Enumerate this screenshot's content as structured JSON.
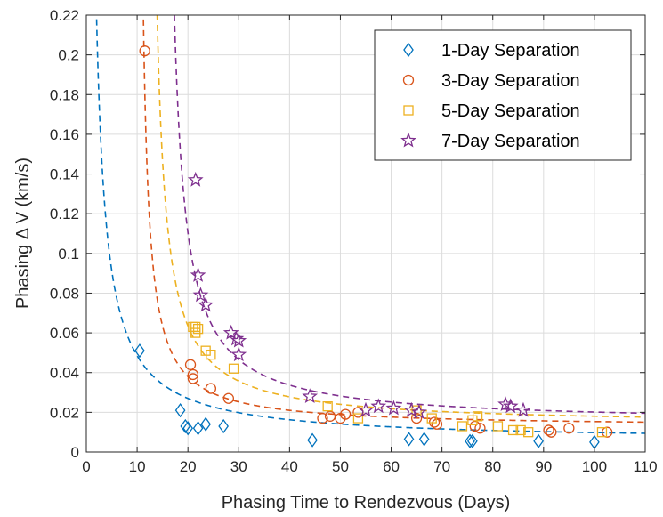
{
  "chart_data": {
    "type": "scatter",
    "title": "",
    "xlabel": "Phasing Time to Rendezvous (Days)",
    "ylabel": "Phasing Δ V (km/s)",
    "xlim": [
      0,
      110
    ],
    "ylim": [
      0,
      0.22
    ],
    "xticks": [
      "0",
      "10",
      "20",
      "30",
      "40",
      "50",
      "60",
      "70",
      "80",
      "90",
      "100",
      "110"
    ],
    "yticks": [
      "0",
      "0.02",
      "0.04",
      "0.06",
      "0.08",
      "0.1",
      "0.12",
      "0.14",
      "0.16",
      "0.18",
      "0.2",
      "0.22"
    ],
    "grid": true,
    "legend_position": "top-right",
    "series": [
      {
        "name": "1-Day Separation",
        "marker": "diamond",
        "color": "#0072BD",
        "fit": {
          "a": 0.43,
          "b": 0.0055,
          "x0": 0
        },
        "x": [
          10.5,
          18.5,
          19.5,
          20,
          22,
          23.5,
          27,
          44.5,
          63.5,
          66.5,
          75.5,
          76,
          89,
          100
        ],
        "y": [
          0.051,
          0.021,
          0.013,
          0.012,
          0.012,
          0.014,
          0.013,
          0.006,
          0.0065,
          0.0065,
          0.0055,
          0.0055,
          0.0055,
          0.005
        ]
      },
      {
        "name": "3-Day Separation",
        "marker": "circle",
        "color": "#D95319",
        "fit": {
          "a": 0.255,
          "b": 0.0125,
          "x0": 10
        },
        "x": [
          11.5,
          20.5,
          21,
          21,
          24.5,
          28,
          46.5,
          48,
          50,
          51,
          53.5,
          65,
          68.5,
          69,
          76.5,
          77.5,
          91,
          91.5,
          95,
          102.5
        ],
        "y": [
          0.202,
          0.044,
          0.039,
          0.037,
          0.032,
          0.027,
          0.017,
          0.018,
          0.017,
          0.019,
          0.02,
          0.017,
          0.015,
          0.014,
          0.013,
          0.012,
          0.011,
          0.01,
          0.012,
          0.01
        ]
      },
      {
        "name": "5-Day Separation",
        "marker": "square",
        "color": "#EDB120",
        "fit": {
          "a": 0.4,
          "b": 0.0135,
          "x0": 12
        },
        "x": [
          21,
          21.5,
          21.5,
          22,
          23.5,
          24.5,
          29,
          47.5,
          53.5,
          65,
          68,
          74,
          76,
          77,
          81,
          84,
          85.5,
          87,
          101.5
        ],
        "y": [
          0.063,
          0.063,
          0.06,
          0.062,
          0.051,
          0.049,
          0.042,
          0.023,
          0.017,
          0.021,
          0.017,
          0.013,
          0.016,
          0.018,
          0.013,
          0.011,
          0.011,
          0.01,
          0.01
        ]
      },
      {
        "name": "7-Day Separation",
        "marker": "star",
        "color": "#7E2F8E",
        "fit": {
          "a": 0.48,
          "b": 0.0145,
          "x0": 15
        },
        "x": [
          21.5,
          22,
          22.5,
          23.5,
          28.5,
          29.5,
          30,
          30,
          44,
          55,
          57.5,
          60.5,
          64,
          65.5,
          82.5,
          83.5,
          86
        ],
        "y": [
          0.137,
          0.089,
          0.079,
          0.074,
          0.06,
          0.057,
          0.056,
          0.049,
          0.028,
          0.021,
          0.023,
          0.022,
          0.021,
          0.02,
          0.024,
          0.023,
          0.021
        ]
      }
    ]
  }
}
